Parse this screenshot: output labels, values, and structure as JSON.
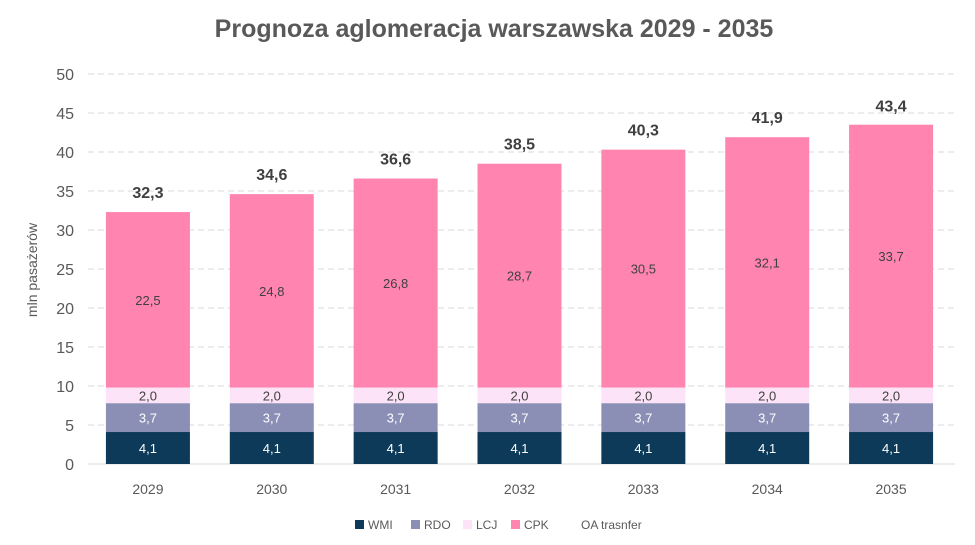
{
  "chart_data": {
    "type": "bar",
    "stacked": true,
    "title": "Prognoza aglomeracja warszawska 2029 - 2035",
    "xlabel": "",
    "ylabel": "mln pasażerów",
    "ylim": [
      0,
      50
    ],
    "yticks": [
      "0",
      "5",
      "10",
      "15",
      "20",
      "25",
      "30",
      "35",
      "40",
      "45",
      "50"
    ],
    "grid": true,
    "legend_position": "bottom",
    "categories": [
      "2029",
      "2030",
      "2031",
      "2032",
      "2033",
      "2034",
      "2035"
    ],
    "series": [
      {
        "name": "WMI",
        "color": "#0d3a58",
        "values": [
          4.1,
          4.1,
          4.1,
          4.1,
          4.1,
          4.1,
          4.1
        ],
        "labels": [
          "4,1",
          "4,1",
          "4,1",
          "4,1",
          "4,1",
          "4,1",
          "4,1"
        ]
      },
      {
        "name": "RDO",
        "color": "#8b8fb6",
        "values": [
          3.7,
          3.7,
          3.7,
          3.7,
          3.7,
          3.7,
          3.7
        ],
        "labels": [
          "3,7",
          "3,7",
          "3,7",
          "3,7",
          "3,7",
          "3,7",
          "3,7"
        ]
      },
      {
        "name": "LCJ",
        "color": "#fde3f7",
        "values": [
          2.0,
          2.0,
          2.0,
          2.0,
          2.0,
          2.0,
          2.0
        ],
        "labels": [
          "2,0",
          "2,0",
          "2,0",
          "2,0",
          "2,0",
          "2,0",
          "2,0"
        ]
      },
      {
        "name": "CPK",
        "color": "#ff85b0",
        "values": [
          22.5,
          24.8,
          26.8,
          28.7,
          30.5,
          32.1,
          33.7
        ],
        "labels": [
          "22,5",
          "24,8",
          "26,8",
          "28,7",
          "30,5",
          "32,1",
          "33,7"
        ]
      },
      {
        "name": "OA trasnfer",
        "color": "#ffffff",
        "values": [
          0,
          0,
          0,
          0,
          0,
          0,
          0
        ],
        "labels": []
      }
    ],
    "totals": [
      32.3,
      34.6,
      36.6,
      38.5,
      40.3,
      41.9,
      43.4
    ],
    "total_labels": [
      "32,3",
      "34,6",
      "36,6",
      "38,5",
      "40,3",
      "41,9",
      "43,4"
    ]
  }
}
